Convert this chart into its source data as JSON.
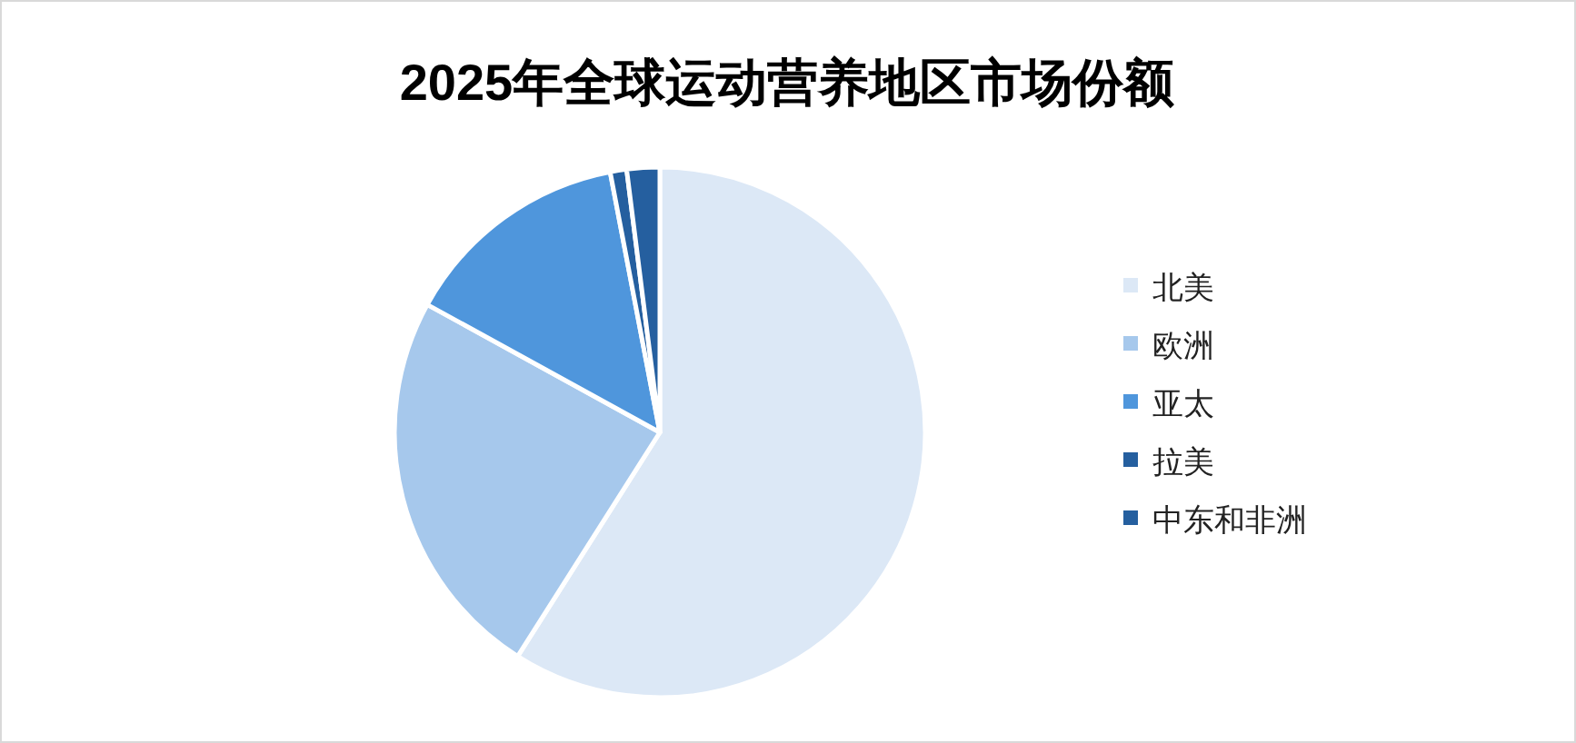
{
  "chart_data": {
    "type": "pie",
    "title": "2025年全球运动营养地区市场份额",
    "categories": [
      "北美",
      "欧洲",
      "亚太",
      "拉美",
      "中东和非洲"
    ],
    "values": [
      59,
      24,
      14,
      1,
      2
    ],
    "colors": [
      "#dce8f6",
      "#a6c8ec",
      "#4f96dc",
      "#255f9f",
      "#255f9f"
    ],
    "legend": "right"
  }
}
